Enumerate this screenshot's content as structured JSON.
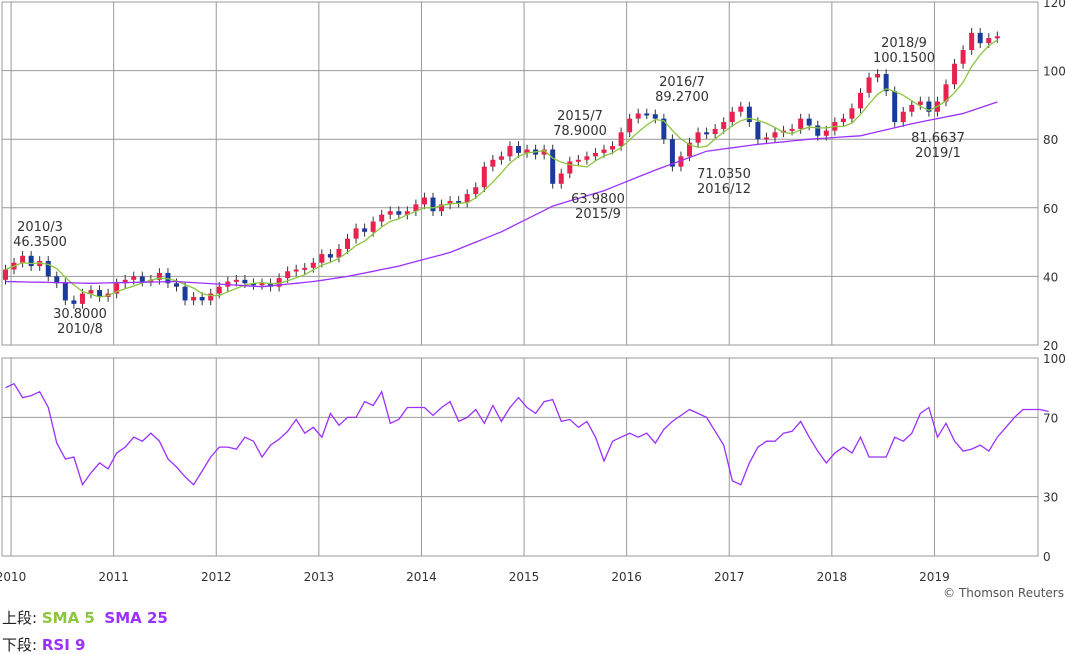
{
  "chart_data": [
    {
      "type": "candlestick",
      "panel": "upper",
      "ylim": [
        20,
        120
      ],
      "yticks": [
        20,
        40,
        60,
        80,
        100,
        120
      ],
      "x_start": "2009/12",
      "x_end": "2019/10",
      "xticks": [
        "2010",
        "2011",
        "2012",
        "2013",
        "2014",
        "2015",
        "2016",
        "2017",
        "2018",
        "2019"
      ],
      "grid": true,
      "up_color": "#e8214e",
      "down_color": "#1a3a9c",
      "close": [
        42,
        44,
        46,
        43,
        44.5,
        40,
        38,
        33,
        32,
        35,
        36,
        34,
        35,
        38,
        39,
        40,
        38.5,
        39,
        41,
        38,
        37,
        33,
        34,
        33,
        35,
        37,
        38.5,
        39,
        38,
        37.5,
        38,
        37,
        39.5,
        41.5,
        42,
        42.5,
        44,
        46.5,
        45.5,
        48,
        51,
        54,
        53,
        56,
        58,
        59,
        58,
        59,
        61,
        63,
        59,
        61,
        62,
        61.5,
        64,
        66,
        72,
        74,
        75,
        78,
        76,
        77,
        75.5,
        77,
        67,
        70,
        73.5,
        74,
        75,
        76,
        77,
        78,
        82,
        86,
        87.5,
        87.27,
        86,
        80,
        72,
        75,
        79,
        82,
        81.5,
        83,
        85,
        88,
        89.5,
        85,
        80,
        80.5,
        82,
        82.5,
        83,
        86,
        84,
        81,
        82.5,
        85,
        86,
        89,
        93.5,
        98,
        99,
        94,
        85,
        88,
        90,
        91,
        88,
        91,
        96,
        102,
        106,
        111,
        108,
        109.5,
        110
      ],
      "sma5_color": "#8cc63f",
      "sma25_color": "#9b30ff",
      "sma25_anchors": [
        [
          0,
          38.5
        ],
        [
          10,
          38
        ],
        [
          20,
          38.5
        ],
        [
          30,
          37
        ],
        [
          36,
          38.5
        ],
        [
          40,
          40
        ],
        [
          46,
          43
        ],
        [
          52,
          47
        ],
        [
          58,
          53
        ],
        [
          64,
          60.5
        ],
        [
          70,
          65
        ],
        [
          76,
          71
        ],
        [
          82,
          76.5
        ],
        [
          88,
          78.5
        ],
        [
          94,
          80
        ],
        [
          100,
          81
        ],
        [
          106,
          84.5
        ],
        [
          112,
          87.5
        ],
        [
          118,
          92.5
        ]
      ],
      "rsi_color": "#9b30ff"
    },
    {
      "type": "line",
      "panel": "lower",
      "name": "RSI 9",
      "ylim": [
        0,
        100
      ],
      "yticks": [
        0,
        30,
        70,
        100
      ],
      "values": [
        85,
        87,
        80,
        81,
        83,
        75,
        57,
        49,
        50,
        36,
        42,
        47,
        44,
        52,
        55,
        60,
        58,
        62,
        58,
        49,
        45,
        40,
        36,
        43,
        50,
        55,
        55,
        54,
        60,
        58,
        50,
        56,
        59,
        63,
        69,
        62,
        65,
        60,
        72,
        66,
        70,
        70,
        78,
        76,
        83,
        67,
        69,
        75,
        75,
        75,
        71,
        75,
        78,
        68,
        70,
        74,
        67,
        76,
        68,
        75,
        80,
        75,
        72,
        78,
        79,
        68,
        69,
        65,
        68,
        60,
        48,
        58,
        60,
        62,
        60,
        62,
        57,
        64,
        68,
        71,
        74,
        72,
        70,
        63,
        56,
        38,
        36,
        47,
        55,
        58,
        58,
        62,
        63,
        68,
        60,
        53,
        47,
        52,
        55,
        52,
        60,
        50,
        50,
        50,
        60,
        58,
        62,
        72,
        75,
        60,
        67,
        58,
        53,
        54,
        56,
        53,
        60,
        65,
        70,
        74,
        74,
        74,
        73
      ]
    }
  ],
  "annotations": [
    {
      "date": "2010/3",
      "value": "46.3500",
      "pos": "above"
    },
    {
      "date": "2010/8",
      "value": "30.8000",
      "pos": "below"
    },
    {
      "date": "2015/7",
      "value": "78.9000",
      "pos": "above"
    },
    {
      "date": "2015/9",
      "value": "63.9800",
      "pos": "below"
    },
    {
      "date": "2016/7",
      "value": "89.2700",
      "pos": "above"
    },
    {
      "date": "2016/12",
      "value": "71.0350",
      "pos": "below"
    },
    {
      "date": "2018/9",
      "value": "100.1500",
      "pos": "above"
    },
    {
      "date": "2019/1",
      "value": "81.6637",
      "pos": "below"
    }
  ],
  "copyright": "© Thomson Reuters",
  "legend": {
    "upper_label": "上段:",
    "sma5_label": "SMA 5",
    "sma25_label": "SMA 25",
    "lower_label": "下段:",
    "rsi_label": "RSI 9"
  }
}
